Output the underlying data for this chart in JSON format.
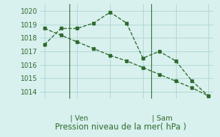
{
  "line1_x": [
    0,
    1,
    2,
    3,
    4,
    5,
    6,
    7,
    8,
    9,
    10
  ],
  "line1_y": [
    1017.5,
    1018.7,
    1018.7,
    1019.1,
    1019.9,
    1019.1,
    1016.5,
    1017.0,
    1016.3,
    1014.8,
    1013.7
  ],
  "line2_x": [
    0,
    1,
    2,
    3,
    4,
    5,
    6,
    7,
    8,
    9,
    10
  ],
  "line2_y": [
    1018.7,
    1018.2,
    1017.7,
    1017.2,
    1016.7,
    1016.3,
    1015.8,
    1015.3,
    1014.8,
    1014.3,
    1013.7
  ],
  "line_color": "#2d6a2d",
  "bg_color": "#d8f0ee",
  "grid_color": "#b0d8d4",
  "ylim": [
    1013.5,
    1020.5
  ],
  "yticks": [
    1014,
    1015,
    1016,
    1017,
    1018,
    1019,
    1020
  ],
  "ven_x": 1.5,
  "sam_x": 6.5,
  "xlabel": "Pression niveau de la mer( hPa )",
  "xlabel_fontsize": 8.5,
  "tick_fontsize": 7,
  "day_fontsize": 7.5,
  "xlim": [
    -0.3,
    10.3
  ]
}
